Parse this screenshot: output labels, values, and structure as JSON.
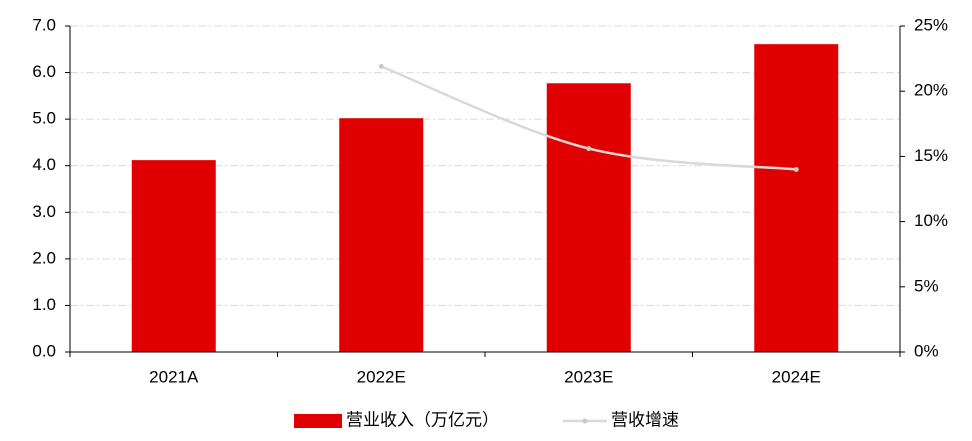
{
  "chart_data": {
    "type": "bar_line",
    "categories": [
      "2021A",
      "2022E",
      "2023E",
      "2024E"
    ],
    "series": [
      {
        "name": "营业收入（万亿元）",
        "color": "#e00000",
        "type": "bar",
        "values": [
          4.12,
          5.02,
          5.77,
          6.61
        ]
      },
      {
        "name": "营收增速",
        "color": "#d9d9d9",
        "type": "line",
        "axis": "y2",
        "values": [
          null,
          21.9,
          15.6,
          14.0
        ]
      }
    ],
    "ylim": [
      0,
      7
    ],
    "yticks": [
      {
        "value": 0,
        "label": "0.0"
      },
      {
        "value": 1,
        "label": "1.0"
      },
      {
        "value": 2,
        "label": "2.0"
      },
      {
        "value": 3,
        "label": "3.0"
      },
      {
        "value": 4,
        "label": "4.0"
      },
      {
        "value": 5,
        "label": "5.0"
      },
      {
        "value": 6,
        "label": "6.0"
      },
      {
        "value": 7,
        "label": "7.0"
      }
    ],
    "y2lim": [
      0,
      25
    ],
    "y2ticks": [
      {
        "value": 0,
        "label": "0%"
      },
      {
        "value": 5,
        "label": "5%"
      },
      {
        "value": 10,
        "label": "10%"
      },
      {
        "value": 15,
        "label": "15%"
      },
      {
        "value": 20,
        "label": "20%"
      },
      {
        "value": 25,
        "label": "25%"
      }
    ],
    "grid": true
  }
}
